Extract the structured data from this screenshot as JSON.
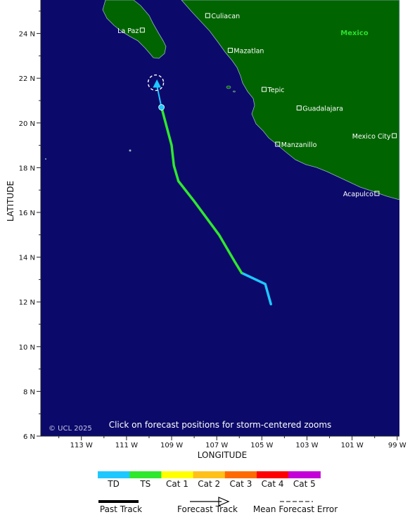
{
  "map": {
    "axis": {
      "ylabel": "LATITUDE",
      "xlabel": "LONGITUDE",
      "lat_ticks": [
        "24 N",
        "22 N",
        "20 N",
        "18 N",
        "16 N",
        "14 N",
        "12 N",
        "10 N",
        "8 N",
        "6 N"
      ],
      "lon_ticks": [
        "113 W",
        "111 W",
        "109 W",
        "107 W",
        "105 W",
        "103 W",
        "101 W",
        "99 W"
      ]
    },
    "region_label": "Mexico",
    "cities": [
      {
        "name": "Culiacan",
        "lat": 24.8,
        "lon": -107.4
      },
      {
        "name": "La Paz",
        "lat": 24.15,
        "lon": -110.3
      },
      {
        "name": "Mazatlan",
        "lat": 23.25,
        "lon": -106.4
      },
      {
        "name": "Tepic",
        "lat": 21.5,
        "lon": -104.9
      },
      {
        "name": "Guadalajara",
        "lat": 20.67,
        "lon": -103.35
      },
      {
        "name": "Mexico City",
        "lat": 19.43,
        "lon": -99.13
      },
      {
        "name": "Manzanillo",
        "lat": 19.05,
        "lon": -104.3
      },
      {
        "name": "Acapulco",
        "lat": 16.85,
        "lon": -99.9
      }
    ],
    "copyright": "© UCL 2025",
    "instruction": "Click on forecast positions for storm-centered zooms",
    "track": {
      "past_td_early": [
        {
          "lat": 11.9,
          "lon": -104.6
        },
        {
          "lat": 12.8,
          "lon": -104.85
        },
        {
          "lat": 13.3,
          "lon": -105.9
        }
      ],
      "past_ts": [
        {
          "lat": 13.3,
          "lon": -105.9
        },
        {
          "lat": 13.8,
          "lon": -106.2
        },
        {
          "lat": 15.0,
          "lon": -106.9
        },
        {
          "lat": 16.5,
          "lon": -108.0
        },
        {
          "lat": 17.4,
          "lon": -108.7
        },
        {
          "lat": 18.1,
          "lon": -108.9
        },
        {
          "lat": 19.0,
          "lon": -109.0
        },
        {
          "lat": 20.7,
          "lon": -109.45
        }
      ],
      "forecast_td": [
        {
          "lat": 20.7,
          "lon": -109.45
        },
        {
          "lat": 21.85,
          "lon": -109.65
        }
      ],
      "current": {
        "lat": 20.7,
        "lon": -109.45
      },
      "forecast_error_center": {
        "lat": 21.8,
        "lon": -109.7
      }
    }
  },
  "legend": {
    "categories": [
      {
        "label": "TD",
        "color": "#1ec8ff"
      },
      {
        "label": "TS",
        "color": "#2ee82e"
      },
      {
        "label": "Cat 1",
        "color": "#ffff00"
      },
      {
        "label": "Cat 2",
        "color": "#ffc01a"
      },
      {
        "label": "Cat 3",
        "color": "#ff6a00"
      },
      {
        "label": "Cat 4",
        "color": "#ff0000"
      },
      {
        "label": "Cat 5",
        "color": "#c400d8"
      }
    ],
    "past_track": "Past Track",
    "forecast_track": "Forecast Track",
    "mean_error": "Mean Forecast Error"
  },
  "colors": {
    "ocean": "#0b0a6a",
    "land": "#006400",
    "mexico_label": "#2de02d"
  }
}
